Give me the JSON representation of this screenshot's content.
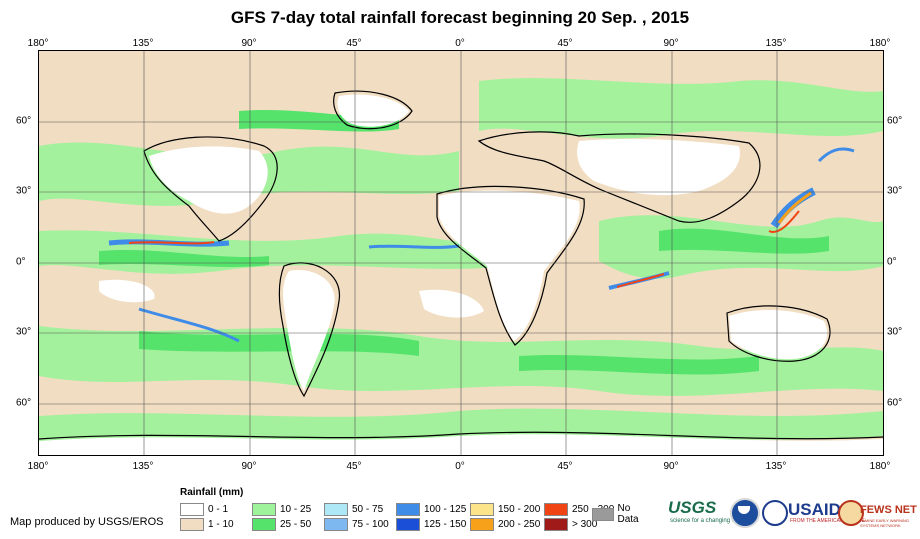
{
  "title": "GFS 7-day total rainfall forecast beginning 20 Sep. , 2015",
  "map": {
    "lon_ticks": [
      "180°",
      "135°",
      "90°",
      "45°",
      "0°",
      "45°",
      "90°",
      "135°",
      "180°"
    ],
    "lat_ticks": [
      "60°",
      "30°",
      "0°",
      "30°",
      "60°"
    ],
    "lat_values": [
      60,
      30,
      0,
      -30,
      -60
    ],
    "lat_range": [
      -82,
      90
    ],
    "colors": {
      "dry": "#f1ddc2",
      "light": "#9ff39a",
      "medium": "#55e36b",
      "blue": "#6faaf0",
      "heavy": "#e06020",
      "land_outline": "#000000"
    }
  },
  "legend": {
    "title": "Rainfall (mm)",
    "items": [
      {
        "label": "0 - 1",
        "color": "#ffffff"
      },
      {
        "label": "1 - 10",
        "color": "#f1ddc2"
      },
      {
        "label": "10 - 25",
        "color": "#9ff39a"
      },
      {
        "label": "25 - 50",
        "color": "#55e36b"
      },
      {
        "label": "50 - 75",
        "color": "#aee8f6"
      },
      {
        "label": "75 - 100",
        "color": "#7db8f0"
      },
      {
        "label": "100 - 125",
        "color": "#3f8ce8"
      },
      {
        "label": "125 - 150",
        "color": "#1c4fd8"
      },
      {
        "label": "150 - 200",
        "color": "#fce48b"
      },
      {
        "label": "200 - 250",
        "color": "#f7a01a"
      },
      {
        "label": "250 - 300",
        "color": "#f04414"
      },
      {
        "label": "> 300",
        "color": "#a11a1a"
      },
      {
        "label": "No Data",
        "color": "#9a9a9a"
      }
    ]
  },
  "credit": "Map produced by USGS/EROS",
  "logos": {
    "usgs": "USGS",
    "usgs_tagline": "science for a changing world",
    "usaid": "USAID",
    "usaid_tagline": "FROM THE AMERICAN PEOPLE",
    "fews": "FEWS NET",
    "fews_tagline": "FAMINE EARLY WARNING SYSTEMS NETWORK"
  }
}
